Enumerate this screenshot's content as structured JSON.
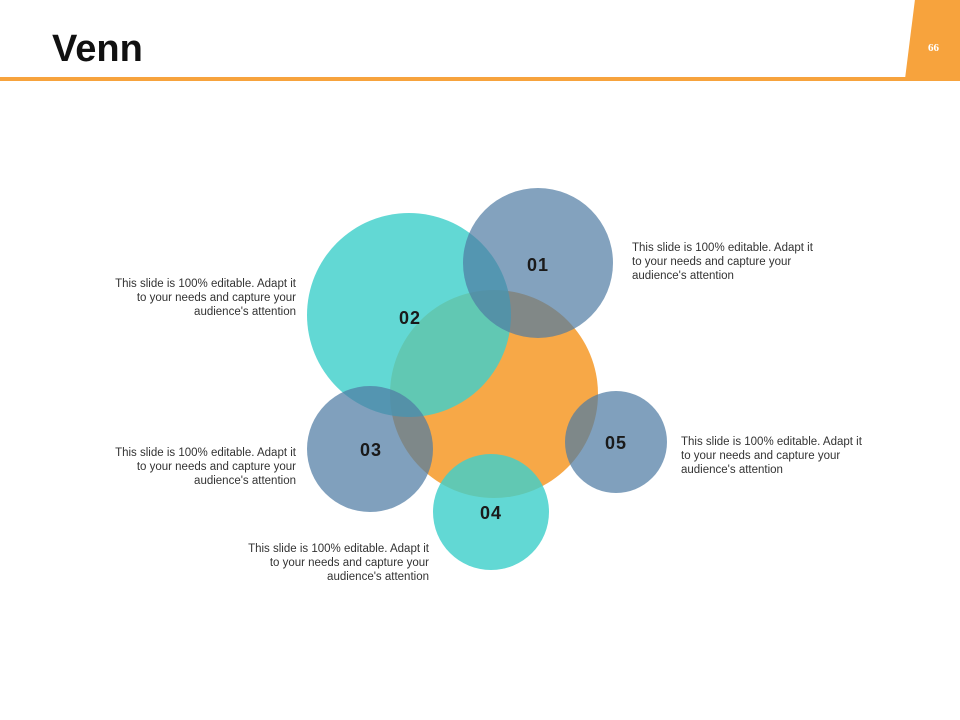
{
  "header": {
    "title": "Venn",
    "page_number": "66"
  },
  "colors": {
    "accent": "#f7a33d",
    "teal": "#5dd8d4",
    "slate_blue": "#6b8fb3",
    "text": "#333333"
  },
  "diagram": {
    "circles": [
      {
        "label": "01",
        "color": "slate_blue"
      },
      {
        "label": "02",
        "color": "teal"
      },
      {
        "label": "03",
        "color": "slate_blue"
      },
      {
        "label": "04",
        "color": "teal"
      },
      {
        "label": "05",
        "color": "slate_blue"
      },
      {
        "label": "",
        "color": "accent"
      }
    ],
    "descriptions": [
      {
        "for": "01",
        "text": "This slide is 100% editable. Adapt it to your needs and capture your audience's attention"
      },
      {
        "for": "02",
        "text": "This slide is 100% editable. Adapt it to your needs and capture your audience's attention"
      },
      {
        "for": "03",
        "text": "This slide is 100% editable. Adapt it to your needs and capture your audience's attention"
      },
      {
        "for": "04",
        "text": "This slide is 100% editable. Adapt it to your needs and capture your audience's attention"
      },
      {
        "for": "05",
        "text": "This slide is 100% editable. Adapt it to your needs and capture your audience's attention"
      }
    ]
  }
}
